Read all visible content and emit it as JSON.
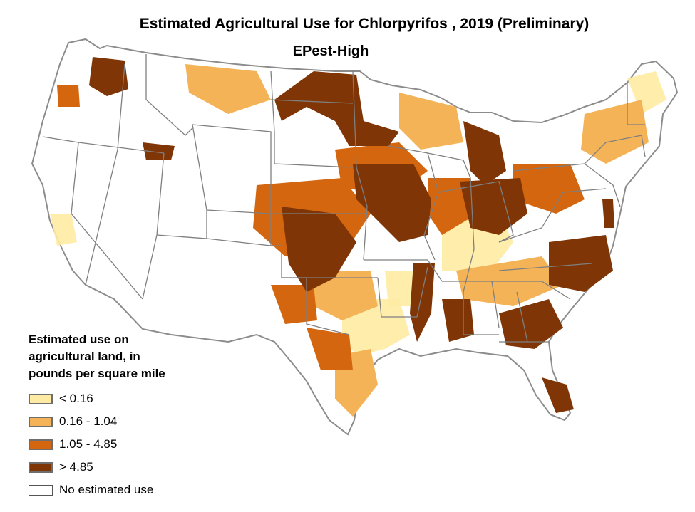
{
  "title": "Estimated Agricultural Use for Chlorpyrifos , 2019 (Preliminary)",
  "subtitle": "EPest-High",
  "legend": {
    "title": "Estimated use on\nagricultural land, in\npounds per square mile",
    "items": [
      {
        "label": "< 0.16",
        "color": "#ffeba3"
      },
      {
        "label": "0.16 - 1.04",
        "color": "#f5b357"
      },
      {
        "label": "1.05 - 4.85",
        "color": "#d3660f"
      },
      {
        "label": "> 4.85",
        "color": "#7f3505"
      },
      {
        "label": "No estimated use",
        "color": "#ffffff"
      }
    ]
  },
  "map": {
    "region": "Conterminous United States",
    "colors": {
      "border": "#7f7f7f",
      "outline": "#8c8c8c",
      "low": "#ffeba3",
      "mid_low": "#f5b357",
      "mid_high": "#d3660f",
      "high": "#7f3505"
    }
  }
}
